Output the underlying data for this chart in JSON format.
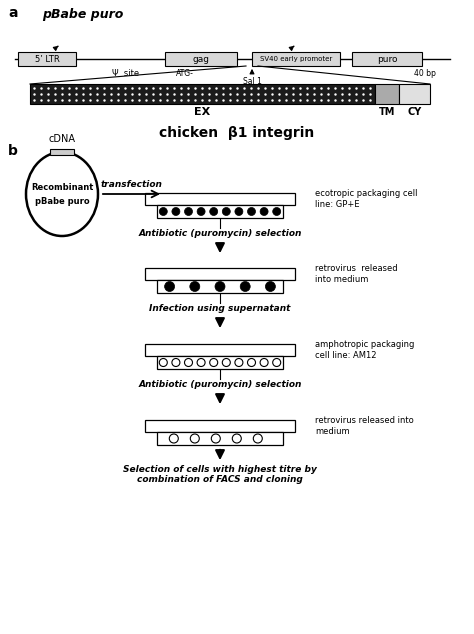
{
  "bg_color": "#ffffff",
  "panel_a_label": "a",
  "panel_b_label": "b",
  "title_a": "pBabe puro",
  "title_integrin": "chicken  β1 integrin",
  "psi_label": "Ψ  site",
  "atg_label": "ATG-",
  "sal1_label": "Sal 1",
  "scale_label": "40 bp",
  "ex_label": "EX",
  "tm_label": "TM",
  "cy_label": "CY",
  "circle_label1": "Recombinant",
  "circle_label2": "pBabe puro",
  "cdna_label": "cDNA",
  "transfection_label": "transfection",
  "ecotropic_label": "ecotropic packaging cell\nline: GP+E",
  "antibiotic1_label": "Antibiotic (puromycin) selection",
  "retrovirus1_label": "retrovirus  released\ninto medium",
  "infection_label": "Infection using supernatant",
  "amphotropic_label": "amphotropic packaging\ncell line: AM12",
  "antibiotic2_label": "Antibiotic (puromycin) selection",
  "retrovirus2_label": "retrovirus released into\nmedium",
  "final_label": "Selection of cells with highest titre by\ncombination of FACS and cloning"
}
